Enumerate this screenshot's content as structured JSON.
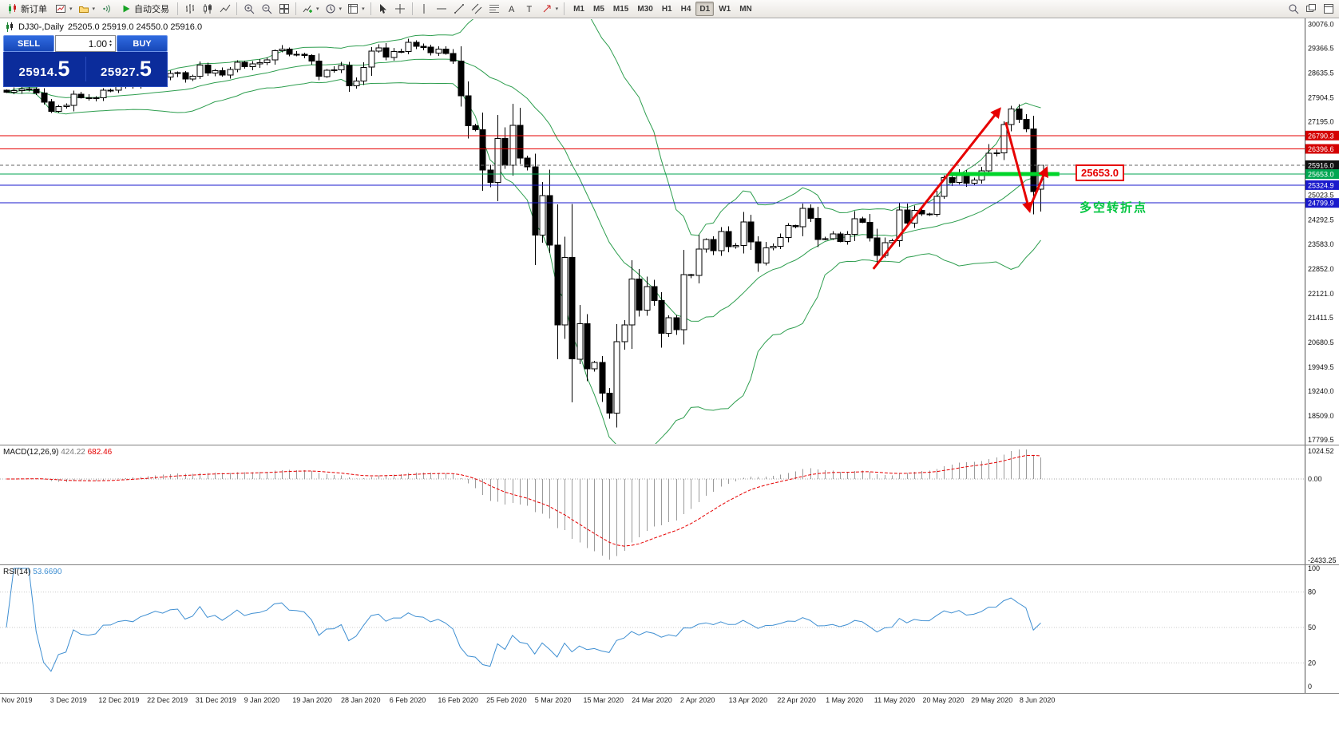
{
  "toolbar": {
    "new_order_label": "新订单",
    "autotrading_label": "自动交易",
    "timeframes": [
      "M1",
      "M5",
      "M15",
      "M30",
      "H1",
      "H4",
      "D1",
      "W1",
      "MN"
    ],
    "active_timeframe": "D1",
    "icons": [
      "new-order",
      "new-chart",
      "profiles",
      "signals",
      "autotrading",
      "bar-chart",
      "candlestick-chart",
      "line-chart",
      "zoom-in",
      "zoom-out",
      "tile-windows",
      "indicators",
      "periods",
      "templates",
      "cursor",
      "crosshair",
      "vertical-line",
      "horizontal-line",
      "trendline",
      "equidistant-channel",
      "fibonacci",
      "text",
      "text-label",
      "arrow-tools",
      "magnifier",
      "open-charts",
      "window-panel"
    ]
  },
  "chart_header": {
    "symbol_period": "DJ30-,Daily",
    "ohlc": "25205.0 25919.0 24550.0 25916.0"
  },
  "trade_panel": {
    "sell_label": "SELL",
    "buy_label": "BUY",
    "volume": "1.00",
    "sell_price": "25914.5",
    "buy_price": "25927.5"
  },
  "chart_data": {
    "type": "candlestick",
    "symbol": "DJ30-",
    "timeframe": "Daily",
    "trend_color": "#e60000",
    "last_ohlc": [
      25205.0,
      25919.0,
      24550.0,
      25916.0
    ],
    "closes": [
      28066,
      28121,
      28164,
      28164,
      28051,
      27783,
      27502,
      27650,
      27677,
      28015,
      27910,
      27882,
      27911,
      28132,
      28135,
      28236,
      28267,
      28239,
      28377,
      28455,
      28551,
      28515,
      28621,
      28645,
      28462,
      28538,
      28869,
      28635,
      28703,
      28583,
      28745,
      28957,
      28824,
      28907,
      28939,
      29030,
      29298,
      29348,
      29196,
      29186,
      29160,
      28990,
      28536,
      28723,
      28734,
      28859,
      28256,
      28400,
      28808,
      29290,
      29380,
      29103,
      29277,
      29276,
      29551,
      29423,
      29398,
      29232,
      29348,
      29220,
      28992,
      27961,
      27081,
      26958,
      25767,
      25409,
      26703,
      25917,
      27091,
      26121,
      25865,
      23851,
      25018,
      23553,
      21200,
      23186,
      20188,
      21237,
      19899,
      20087,
      19174,
      18592,
      20705,
      21200,
      22552,
      21637,
      22327,
      21917,
      20944,
      21413,
      21053,
      22680,
      22654,
      23434,
      23719,
      23391,
      23950,
      23504,
      23537,
      24242,
      23650,
      23019,
      23476,
      23515,
      23775,
      24134,
      24102,
      24634,
      24346,
      23724,
      23749,
      23883,
      23665,
      23876,
      24331,
      24222,
      23765,
      23248,
      23625,
      23685,
      24597,
      24206,
      24576,
      24474,
      24465,
      24995,
      25548,
      25401,
      25701,
      25383,
      25475,
      25743,
      26270,
      26282,
      27111,
      27572,
      27272,
      26990,
      25128,
      25916
    ],
    "x_labels": [
      "Nov 2019",
      "3 Dec 2019",
      "12 Dec 2019",
      "22 Dec 2019",
      "31 Dec 2019",
      "9 Jan 2020",
      "19 Jan 2020",
      "28 Jan 2020",
      "6 Feb 2020",
      "16 Feb 2020",
      "25 Feb 2020",
      "5 Mar 2020",
      "15 Mar 2020",
      "24 Mar 2020",
      "2 Apr 2020",
      "13 Apr 2020",
      "22 Apr 2020",
      "1 May 2020",
      "11 May 2020",
      "20 May 2020",
      "29 May 2020",
      "8 Jun 2020"
    ],
    "y_axis": {
      "visible_range": [
        17799.5,
        30076.0
      ],
      "regular_labels": [
        "30076.0",
        "29366.5",
        "28635.5",
        "27904.5",
        "27195.0",
        "25023.5",
        "24292.5",
        "23583.0",
        "22852.0",
        "22121.0",
        "21411.5",
        "20680.5",
        "19949.5",
        "19240.0",
        "18509.0",
        "17799.5"
      ],
      "price_tags": [
        {
          "text": "26790.3",
          "price": 26790.3,
          "color": "#d40000"
        },
        {
          "text": "26396.6",
          "price": 26396.6,
          "color": "#d40000"
        },
        {
          "text": "25916.0",
          "price": 25916.0,
          "color": "#111111"
        },
        {
          "text": "25653.0",
          "price": 25653.0,
          "color": "#00a651"
        },
        {
          "text": "25324.9",
          "price": 25324.9,
          "color": "#1a1acc"
        },
        {
          "text": "24799.9",
          "price": 24799.9,
          "color": "#1a1acc"
        }
      ]
    },
    "hlines": [
      {
        "price": 26790.3,
        "color": "#e60000"
      },
      {
        "price": 26396.6,
        "color": "#e60000"
      },
      {
        "price": 25916.0,
        "color": "#666666",
        "dash": "4,3"
      },
      {
        "price": 25653.0,
        "color": "#00a651"
      },
      {
        "price": 25324.9,
        "color": "#1a1acc"
      },
      {
        "price": 24799.9,
        "color": "#1a1acc"
      }
    ],
    "bollinger": {
      "period": 20,
      "deviation": 2,
      "color": "#2e9e4f"
    },
    "green_segment": {
      "price": 25653.0,
      "from_bar": 126.5,
      "to_bar": 141.5,
      "color": "#00d42a"
    },
    "trend_arrows": [
      {
        "from_bar": 116.5,
        "from_price": 22850,
        "to_bar": 133.5,
        "to_price": 27580
      },
      {
        "from_bar": 134.3,
        "from_price": 27180,
        "to_bar": 137.5,
        "to_price": 24560
      },
      {
        "from_bar": 137.6,
        "from_price": 24700,
        "to_bar": 139.8,
        "to_price": 25830
      }
    ],
    "price_callout": {
      "text": "25653.0",
      "color": "#e60000"
    },
    "annotation_text": {
      "text": "多空转折点",
      "color": "#00c53f"
    },
    "macd": {
      "label": "MACD(12,26,9)",
      "values": [
        "424.22",
        "682.46"
      ],
      "axis_labels": [
        "1024.52",
        "0.00",
        "-2433.25"
      ],
      "histogram_color": "#9a9a9a",
      "signal_color": "#e60000"
    },
    "rsi": {
      "label": "RSI(14)",
      "value": "53.6690",
      "axis_labels": [
        "100",
        "80",
        "50",
        "20",
        "0"
      ],
      "levels": [
        80,
        50,
        20
      ],
      "line_color": "#3f8fd2"
    }
  }
}
